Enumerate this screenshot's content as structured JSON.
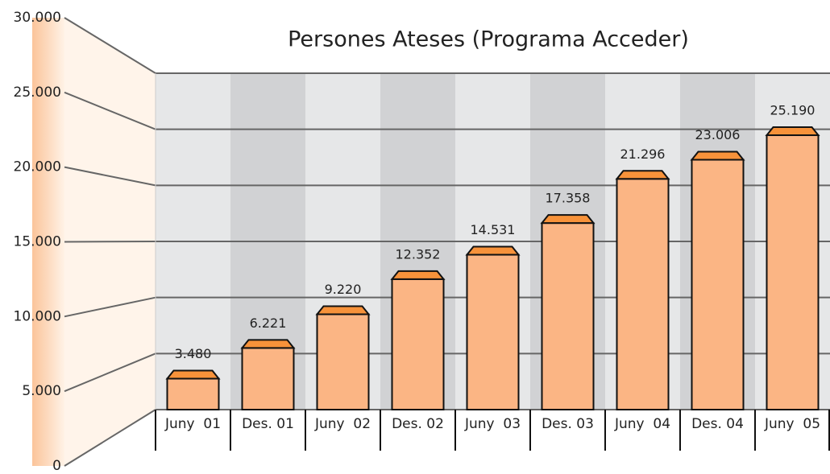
{
  "chart_data": {
    "type": "bar",
    "title": "Persones Ateses (Programa Acceder)",
    "categories": [
      "Juny  01",
      "Des. 01",
      "Juny  02",
      "Des. 02",
      "Juny  03",
      "Des. 03",
      "Juny  04",
      "Des. 04",
      "Juny  05"
    ],
    "values": [
      3480,
      6221,
      9220,
      12352,
      14531,
      17358,
      21296,
      23006,
      25190
    ],
    "value_labels": [
      "3.480",
      "6.221",
      "9.220",
      "12.352",
      "14.531",
      "17.358",
      "21.296",
      "23.006",
      "25.190"
    ],
    "color": "#fbb584",
    "ylim": [
      0,
      30000
    ],
    "yticks": [
      0,
      {
        "value": 5000,
        "label": "5.000"
      },
      {
        "value": 10000,
        "label": "10.000"
      },
      {
        "value": 15000,
        "label": "15.000"
      },
      {
        "value": 20000,
        "label": "20.000"
      },
      {
        "value": 25000,
        "label": "25.000"
      },
      {
        "value": 30000,
        "label": "30.000"
      }
    ],
    "grid": true
  }
}
